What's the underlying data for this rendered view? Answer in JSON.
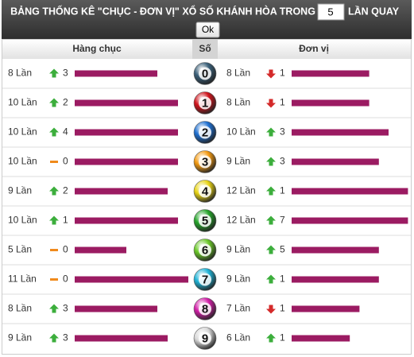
{
  "header": {
    "title": "BẢNG THỐNG KÊ \"CHỤC - ĐƠN VỊ\" XỔ SỐ KHÁNH HÒA TRONG",
    "input_value": "5",
    "title_suffix": "LẦN QUAY",
    "button": "Ok"
  },
  "table": {
    "columns": [
      "Hàng chục",
      "Số",
      "Đơn vị"
    ],
    "bar_color": "#9b1b62",
    "rows": [
      {
        "number": "0",
        "ball_color": "#3a5f78",
        "tens": {
          "value": 8,
          "label": "8 Lần",
          "trend": "up",
          "change": 3
        },
        "units": {
          "value": 8,
          "label": "8 Lần",
          "trend": "down",
          "change": 1
        }
      },
      {
        "number": "1",
        "ball_color": "#d0141c",
        "tens": {
          "value": 10,
          "label": "10 Lần",
          "trend": "up",
          "change": 2
        },
        "units": {
          "value": 8,
          "label": "8 Lần",
          "trend": "down",
          "change": 1
        }
      },
      {
        "number": "2",
        "ball_color": "#1e6fd0",
        "tens": {
          "value": 10,
          "label": "10 Lần",
          "trend": "up",
          "change": 4
        },
        "units": {
          "value": 10,
          "label": "10 Lần",
          "trend": "up",
          "change": 3
        }
      },
      {
        "number": "3",
        "ball_color": "#f39a12",
        "tens": {
          "value": 10,
          "label": "10 Lần",
          "trend": "same",
          "change": 0
        },
        "units": {
          "value": 9,
          "label": "9 Lần",
          "trend": "up",
          "change": 3
        }
      },
      {
        "number": "4",
        "ball_color": "#e8d416",
        "tens": {
          "value": 9,
          "label": "9 Lần",
          "trend": "up",
          "change": 2
        },
        "units": {
          "value": 12,
          "label": "12 Lần",
          "trend": "up",
          "change": 1
        }
      },
      {
        "number": "5",
        "ball_color": "#27a52c",
        "tens": {
          "value": 10,
          "label": "10 Lần",
          "trend": "up",
          "change": 1
        },
        "units": {
          "value": 12,
          "label": "12 Lần",
          "trend": "up",
          "change": 7
        }
      },
      {
        "number": "6",
        "ball_color": "#6cc92a",
        "tens": {
          "value": 5,
          "label": "5 Lần",
          "trend": "same",
          "change": 0
        },
        "units": {
          "value": 9,
          "label": "9 Lần",
          "trend": "up",
          "change": 5
        }
      },
      {
        "number": "7",
        "ball_color": "#1fb3d6",
        "tens": {
          "value": 11,
          "label": "11 Lần",
          "trend": "same",
          "change": 0
        },
        "units": {
          "value": 9,
          "label": "9 Lần",
          "trend": "up",
          "change": 1
        }
      },
      {
        "number": "8",
        "ball_color": "#d31fa8",
        "tens": {
          "value": 8,
          "label": "8 Lần",
          "trend": "up",
          "change": 3
        },
        "units": {
          "value": 7,
          "label": "7 Lần",
          "trend": "down",
          "change": 1
        }
      },
      {
        "number": "9",
        "ball_color": "#d8d8d8",
        "tens": {
          "value": 9,
          "label": "9 Lần",
          "trend": "up",
          "change": 3
        },
        "units": {
          "value": 6,
          "label": "6 Lần",
          "trend": "up",
          "change": 1
        }
      }
    ]
  }
}
